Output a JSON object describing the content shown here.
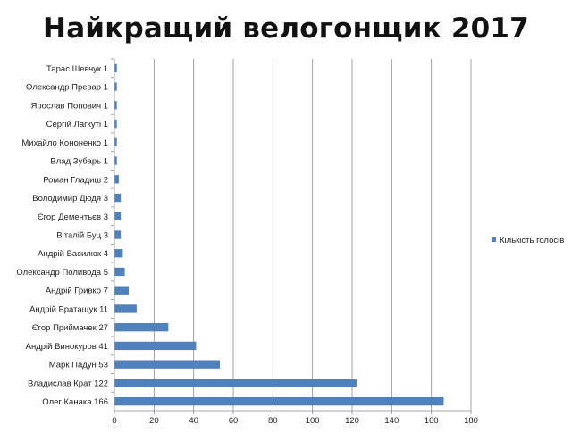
{
  "chart_data": {
    "type": "bar",
    "orientation": "horizontal",
    "title": "Найкращий велогонщик 2017",
    "categories": [
      "Тарас Шевчук 1",
      "Олександр Превар 1",
      "Ярослав Попович 1",
      "Сергій Лагкуті 1",
      "Михайло Кононенко 1",
      "Влад Зубарь 1",
      "Роман Гладиш 2",
      "Володимир Дюдя 3",
      "Єгор Дементьєв 3",
      "Віталій Буц 3",
      "Андрій Василюк 4",
      "Олександр Поливода 5",
      "Андрій Гривко 7",
      "Андрій Братащук 11",
      "Єгор Приймачек 27",
      "Андрій Винокуров 41",
      "Марк Падун 53",
      "Владислав Крат 122",
      "Олег Канака 166"
    ],
    "series": [
      {
        "name": "Кількість голосів",
        "values": [
          1,
          1,
          1,
          1,
          1,
          1,
          2,
          3,
          3,
          3,
          4,
          5,
          7,
          11,
          27,
          41,
          53,
          122,
          166
        ],
        "color": "#4f81bd"
      }
    ],
    "xlim": [
      0,
      180
    ],
    "xticks": [
      0,
      20,
      40,
      60,
      80,
      100,
      120,
      140,
      160,
      180
    ],
    "grid": true,
    "legend_position": "right"
  }
}
